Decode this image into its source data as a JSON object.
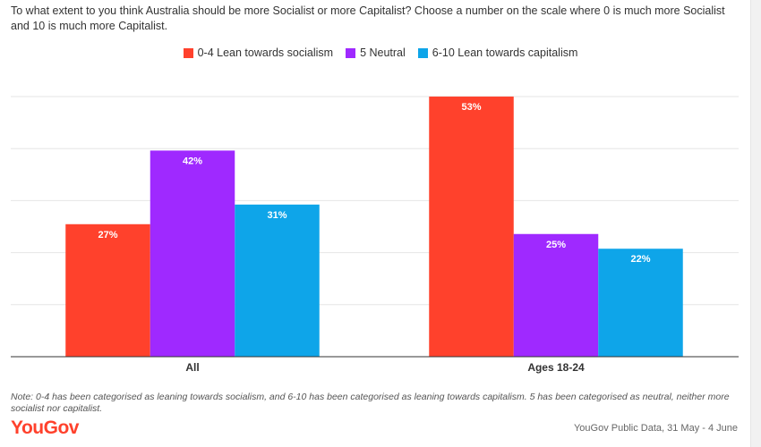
{
  "question": "To what extent to you think Australia should be more Socialist or more Capitalist? Choose a number on the scale where 0 is much more Socialist and 10 is much more Capitalist.",
  "footnote": "Note: 0-4 has been categorised as leaning towards socialism, and 6-10 has been categorised as leaning towards capitalism. 5 has been categorised as neutral, neither more socialist nor capitalist.",
  "logo": "YouGov",
  "source": "YouGov Public Data, 31 May - 4 June",
  "chart_data": {
    "type": "bar",
    "title": "To what extent to you think Australia should be more Socialist or more Capitalist? Choose a number on the scale where 0 is much more Socialist and 10 is much more Capitalist.",
    "categories": [
      "All",
      "Ages 18-24"
    ],
    "series": [
      {
        "name": "0-4 Lean towards socialism",
        "color": "#ff412c",
        "values": [
          27,
          53
        ]
      },
      {
        "name": "5 Neutral",
        "color": "#9f29ff",
        "values": [
          42,
          25
        ]
      },
      {
        "name": "6-10 Lean towards capitalism",
        "color": "#0ea5e9",
        "values": [
          31,
          22
        ]
      }
    ],
    "value_suffix": "%",
    "ylim": [
      0,
      55
    ],
    "grid": true,
    "legend": "top-center",
    "xlabel": "",
    "ylabel": ""
  }
}
